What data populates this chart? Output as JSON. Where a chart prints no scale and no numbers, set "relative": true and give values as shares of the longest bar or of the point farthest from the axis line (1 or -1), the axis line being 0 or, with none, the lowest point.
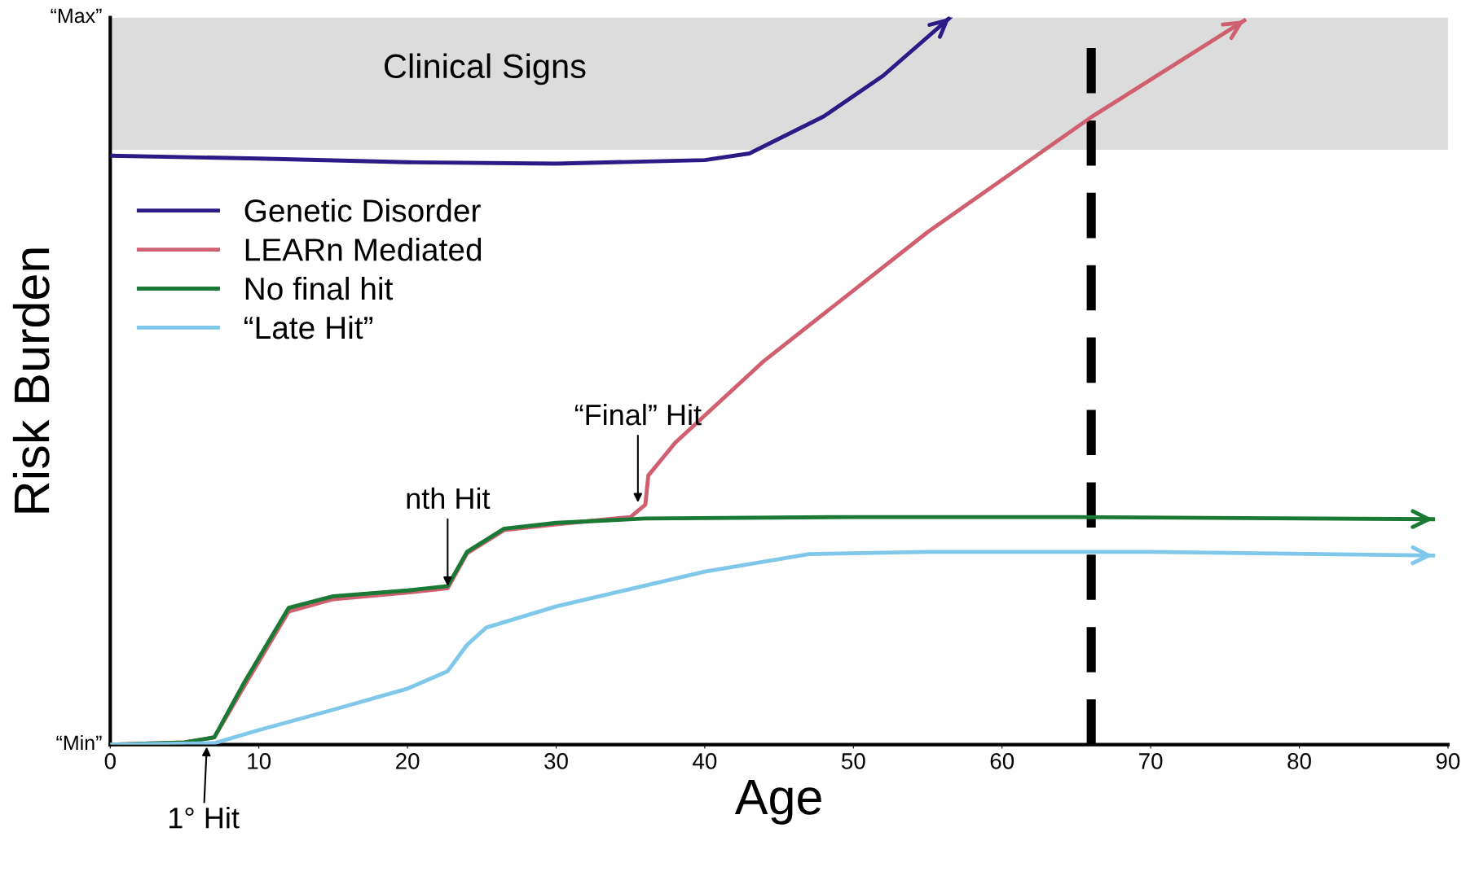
{
  "chart_data": {
    "type": "line",
    "xlabel": "Age",
    "ylabel": "Risk Burden",
    "xlim": [
      0,
      90
    ],
    "xticks": [
      0,
      10,
      20,
      30,
      40,
      50,
      60,
      70,
      80,
      90
    ],
    "relative": true,
    "grid": false,
    "legend": "top left",
    "marker": "none",
    "line_style": "solid",
    "series": [
      {
        "name": "Genetic Disorder",
        "color": "#2e1a87",
        "x": [
          0,
          10,
          20,
          30,
          40,
          43,
          48,
          52,
          56.5
        ],
        "values": [
          0.81,
          0.806,
          0.801,
          0.799,
          0.804,
          0.813,
          0.864,
          0.92,
          1.0
        ]
      },
      {
        "name": "LEARn Mediated",
        "color": "#d0606f",
        "x": [
          0,
          5,
          7,
          9,
          12,
          15,
          20,
          22.7,
          24,
          26.5,
          30,
          35,
          36,
          36.2,
          38,
          44,
          55,
          66,
          76.3
        ],
        "values": [
          0,
          0.003,
          0.01,
          0.08,
          0.183,
          0.2,
          0.209,
          0.215,
          0.263,
          0.295,
          0.303,
          0.313,
          0.33,
          0.37,
          0.415,
          0.528,
          0.705,
          0.863,
          0.996
        ]
      },
      {
        "name": "No final hit",
        "color": "#1a7a35",
        "x": [
          0,
          5,
          7,
          9,
          12,
          15,
          20,
          22.7,
          24,
          26.5,
          30,
          36,
          50,
          65,
          89
        ],
        "values": [
          0,
          0.003,
          0.01,
          0.085,
          0.188,
          0.204,
          0.212,
          0.218,
          0.265,
          0.297,
          0.305,
          0.311,
          0.313,
          0.313,
          0.31
        ]
      },
      {
        "name": "“Late Hit”",
        "color": "#7fc8ea",
        "x": [
          0,
          7,
          10,
          15,
          20,
          22.7,
          24,
          25.3,
          30,
          40,
          47,
          55,
          70,
          89
        ],
        "values": [
          0,
          0.002,
          0.02,
          0.048,
          0.077,
          0.101,
          0.137,
          0.161,
          0.19,
          0.238,
          0.262,
          0.265,
          0.265,
          0.26
        ]
      }
    ],
    "bands": [
      {
        "axis": "y",
        "from": 0.818,
        "to": 1.0,
        "label": "Clinical Signs",
        "color": "#dcdcdc"
      }
    ],
    "ref_lines": [
      {
        "axis": "x",
        "value": 66,
        "label": null,
        "color": "#000000",
        "line_style": "dashed"
      }
    ],
    "annotations": [
      "“Min”",
      "“Max”",
      {
        "text": "1° Hit",
        "x": 6.5,
        "y": 0
      },
      {
        "text": "nth Hit",
        "x": 22.7,
        "y": 0.215
      },
      {
        "text": "“Final” Hit",
        "x": 35.5,
        "y": 0.33
      }
    ]
  }
}
